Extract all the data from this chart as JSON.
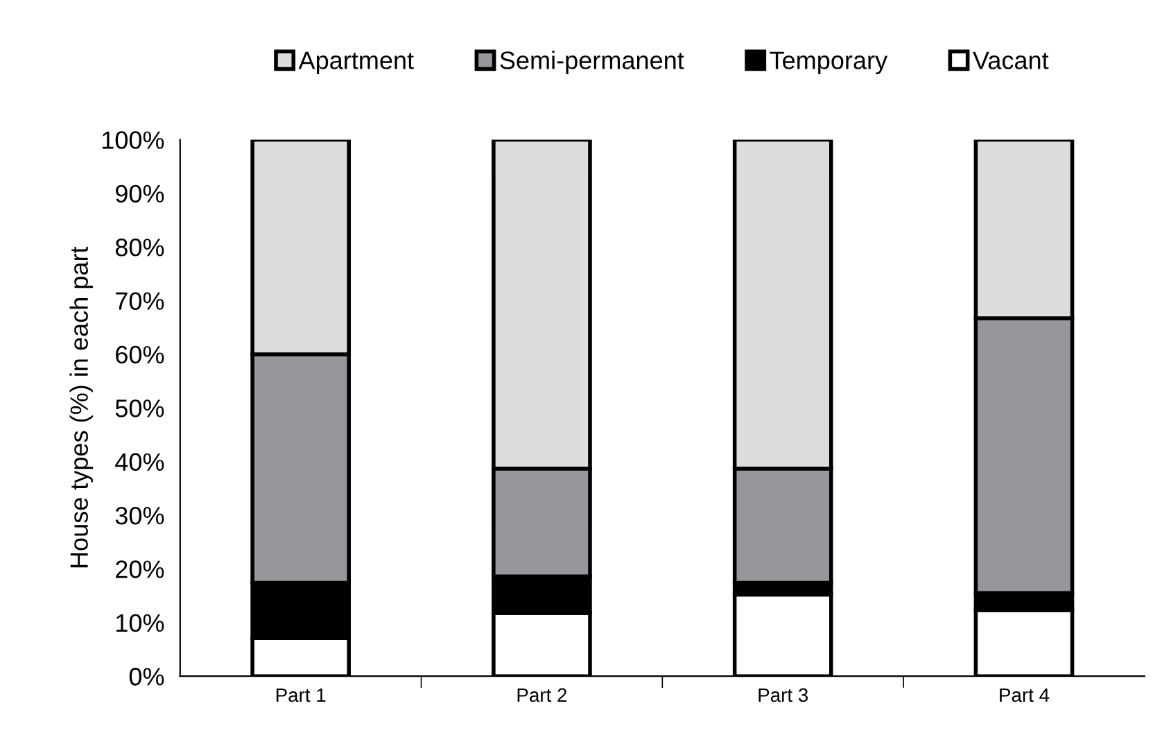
{
  "chart_data": {
    "type": "bar",
    "stacked": true,
    "ylabel": "House types (%) in each part",
    "categories": [
      "Part 1",
      "Part 2",
      "Part 3",
      "Part 4"
    ],
    "series": [
      {
        "name": "Vacant",
        "color": "#ffffff",
        "values": [
          7.1,
          11.8,
          15.2,
          12.3
        ]
      },
      {
        "name": "Temporary",
        "color": "#000000",
        "values": [
          10.3,
          6.8,
          2.2,
          3.2
        ]
      },
      {
        "name": "Semi-permanent",
        "color": "#96979a",
        "values": [
          42.6,
          20.1,
          21.3,
          51.2
        ]
      },
      {
        "name": "Apartment",
        "color": "#dcdddf",
        "values": [
          40.0,
          61.3,
          61.3,
          33.3
        ]
      }
    ],
    "ylim": [
      0,
      100
    ],
    "yticks": [
      {
        "value": 0,
        "label": "0%"
      },
      {
        "value": 10,
        "label": "10%"
      },
      {
        "value": 20,
        "label": "20%"
      },
      {
        "value": 30,
        "label": "30%"
      },
      {
        "value": 40,
        "label": "40%"
      },
      {
        "value": 50,
        "label": "50%"
      },
      {
        "value": 60,
        "label": "60%"
      },
      {
        "value": 70,
        "label": "70%"
      },
      {
        "value": 80,
        "label": "80%"
      },
      {
        "value": 90,
        "label": "90%"
      },
      {
        "value": 100,
        "label": "100%"
      }
    ],
    "grid": false,
    "legend": "top"
  }
}
